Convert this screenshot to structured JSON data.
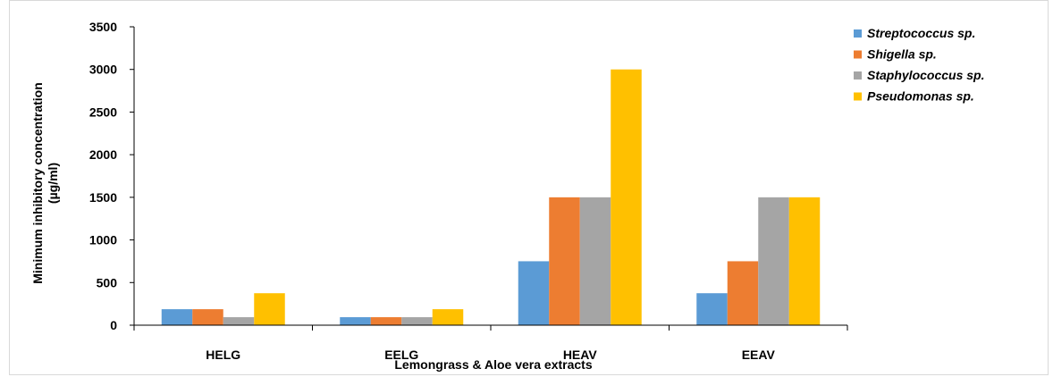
{
  "chart_data": {
    "type": "bar",
    "categories": [
      "HELG",
      "EELG",
      "HEAV",
      "EEAV"
    ],
    "series": [
      {
        "name": "Streptococcus sp.",
        "color": "#5b9bd5",
        "values": [
          187.5,
          93.75,
          750,
          375
        ]
      },
      {
        "name": "Shigella sp.",
        "color": "#ed7d31",
        "values": [
          187.5,
          93.75,
          1500,
          750
        ]
      },
      {
        "name": "Staphylococcus sp.",
        "color": "#a5a5a5",
        "values": [
          93.75,
          93.75,
          1500,
          1500
        ]
      },
      {
        "name": "Pseudomonas sp.",
        "color": "#ffc000",
        "values": [
          375,
          187.5,
          3000,
          1500
        ]
      }
    ],
    "xlabel": "Lemongrass & Aloe vera  extracts",
    "ylabel_line1": "Minimum inhibitory concentration",
    "ylabel_line2": "(µg/ml)",
    "ylim": [
      0,
      3500
    ],
    "yticks": [
      0,
      500,
      1000,
      1500,
      2000,
      2500,
      3000,
      3500
    ],
    "grid": false,
    "legend_position": "right"
  }
}
